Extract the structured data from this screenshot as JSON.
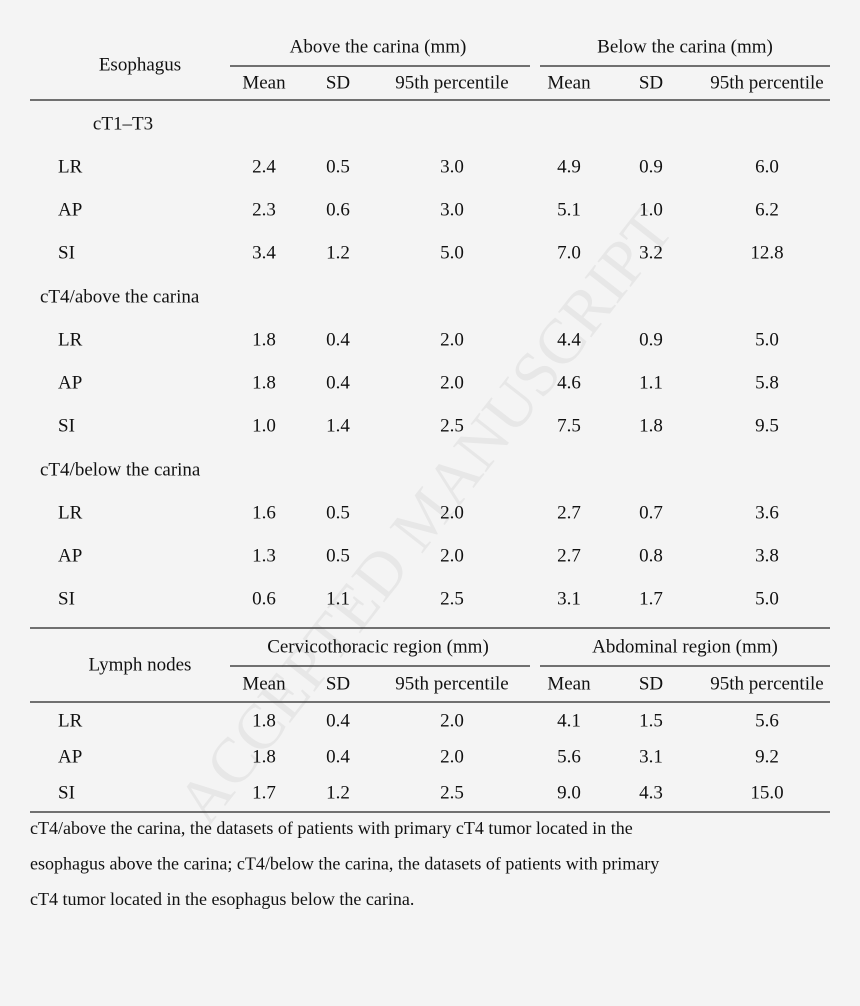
{
  "esophagus": {
    "header": "Esophagus",
    "groups": [
      "Above the carina (mm)",
      "Below the carina (mm)"
    ],
    "columns": [
      "Mean",
      "SD",
      "95th percentile",
      "Mean",
      "SD",
      "95th percentile"
    ],
    "sections": [
      {
        "label": "cT1–T3",
        "rows": [
          {
            "label": "LR",
            "values": [
              "2.4",
              "0.5",
              "3.0",
              "4.9",
              "0.9",
              "6.0"
            ]
          },
          {
            "label": "AP",
            "values": [
              "2.3",
              "0.6",
              "3.0",
              "5.1",
              "1.0",
              "6.2"
            ]
          },
          {
            "label": "SI",
            "values": [
              "3.4",
              "1.2",
              "5.0",
              "7.0",
              "3.2",
              "12.8"
            ]
          }
        ]
      },
      {
        "label": "cT4/above the carina",
        "rows": [
          {
            "label": "LR",
            "values": [
              "1.8",
              "0.4",
              "2.0",
              "4.4",
              "0.9",
              "5.0"
            ]
          },
          {
            "label": "AP",
            "values": [
              "1.8",
              "0.4",
              "2.0",
              "4.6",
              "1.1",
              "5.8"
            ]
          },
          {
            "label": "SI",
            "values": [
              "1.0",
              "1.4",
              "2.5",
              "7.5",
              "1.8",
              "9.5"
            ]
          }
        ]
      },
      {
        "label": "cT4/below the carina",
        "rows": [
          {
            "label": "LR",
            "values": [
              "1.6",
              "0.5",
              "2.0",
              "2.7",
              "0.7",
              "3.6"
            ]
          },
          {
            "label": "AP",
            "values": [
              "1.3",
              "0.5",
              "2.0",
              "2.7",
              "0.8",
              "3.8"
            ]
          },
          {
            "label": "SI",
            "values": [
              "0.6",
              "1.1",
              "2.5",
              "3.1",
              "1.7",
              "5.0"
            ]
          }
        ]
      }
    ]
  },
  "lymph_nodes": {
    "header": "Lymph nodes",
    "groups": [
      "Cervicothoracic region (mm)",
      "Abdominal region (mm)"
    ],
    "columns": [
      "Mean",
      "SD",
      "95th percentile",
      "Mean",
      "SD",
      "95th percentile"
    ],
    "rows": [
      {
        "label": "LR",
        "values": [
          "1.8",
          "0.4",
          "2.0",
          "4.1",
          "1.5",
          "5.6"
        ]
      },
      {
        "label": "AP",
        "values": [
          "1.8",
          "0.4",
          "2.0",
          "5.6",
          "3.1",
          "9.2"
        ]
      },
      {
        "label": "SI",
        "values": [
          "1.7",
          "1.2",
          "2.5",
          "9.0",
          "4.3",
          "15.0"
        ]
      }
    ]
  },
  "footnote": [
    "cT4/above the carina, the datasets of patients with primary cT4 tumor located in the",
    "esophagus above the carina; cT4/below the carina, the datasets of patients with primary",
    "cT4 tumor located in the esophagus below the carina."
  ],
  "watermark": "ACCEPTED MANUSCRIPT"
}
